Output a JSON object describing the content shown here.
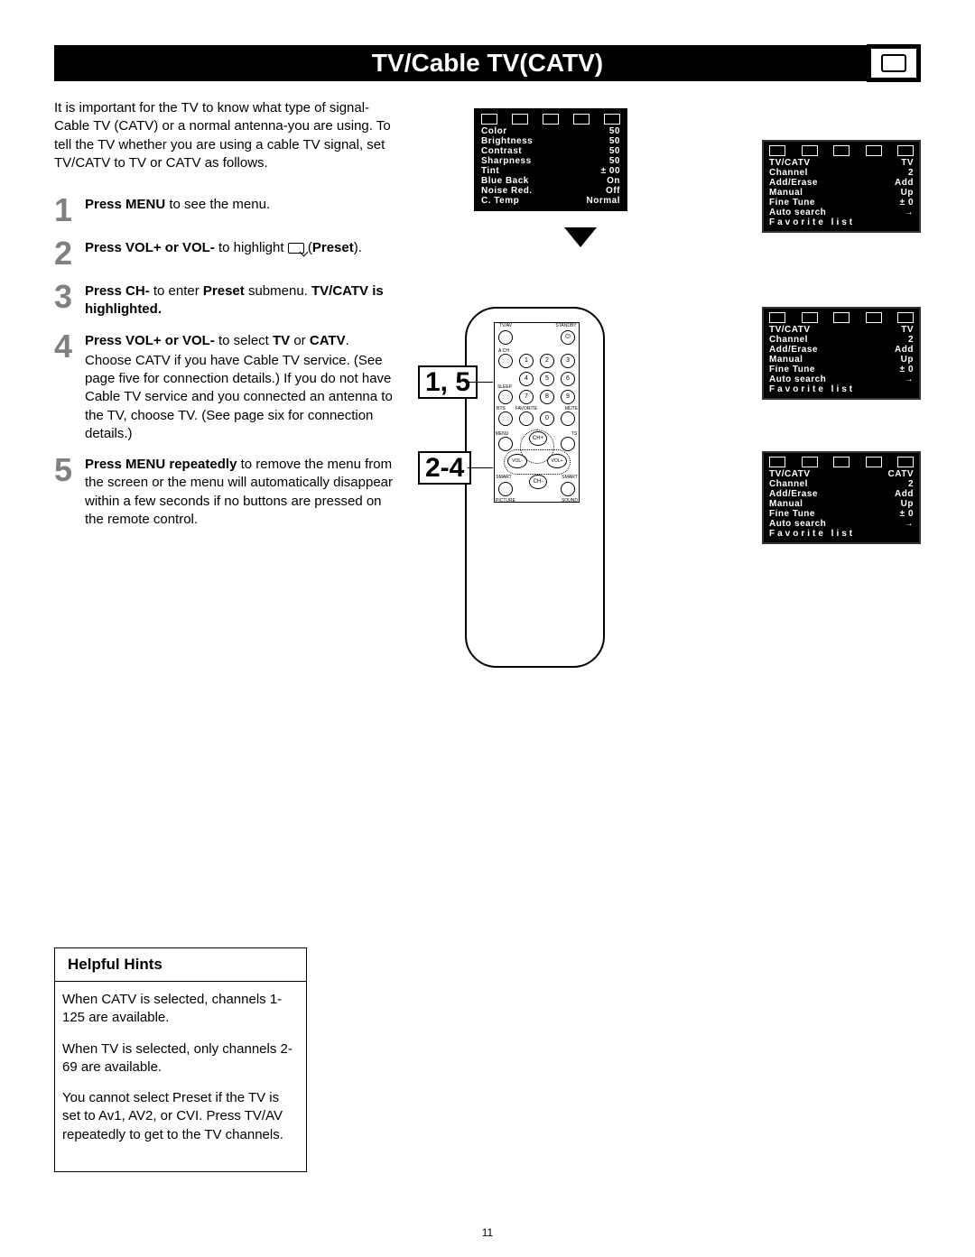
{
  "title": "TV/Cable TV(CATV)",
  "intro": "It is important for the TV to know what type of signal-Cable TV (CATV) or a normal antenna-you are using. To tell the TV whether you are using a cable TV signal, set TV/CATV to TV or CATV as follows.",
  "steps": {
    "s1": {
      "num": "1",
      "lead": "Press MENU",
      "rest": " to see the menu."
    },
    "s2": {
      "num": "2",
      "lead": "Press VOL+ or VOL-",
      "rest": " to highlight ",
      "tail": "Preset",
      "tail2": ")."
    },
    "s3": {
      "num": "3",
      "lead": "Press CH-",
      "rest": " to enter ",
      "bold2": "Preset",
      "rest2": " submenu. ",
      "bold3": "TV/CATV is highlighted."
    },
    "s4": {
      "num": "4",
      "lead": "Press VOL+ or VOL-",
      "rest": " to select ",
      "tv": "TV",
      "or": " or ",
      "catv": "CATV",
      "dot": ".",
      "body": "Choose CATV if you have Cable TV service. (See page five for connection details.) If you do not have Cable TV service and you connected an antenna to the TV, choose TV. (See page six for connection details.)"
    },
    "s5": {
      "num": "5",
      "lead": "Press MENU repeatedly",
      "rest": " to remove the menu from the screen or the menu will automatically disappear within a few seconds if no buttons are pressed on the remote control."
    }
  },
  "osd1": {
    "rows": [
      [
        "Color",
        "50"
      ],
      [
        "Brightness",
        "50"
      ],
      [
        "Contrast",
        "50"
      ],
      [
        "Sharpness",
        "50"
      ],
      [
        "Tint",
        "± 00"
      ],
      [
        "Blue Back",
        "On"
      ],
      [
        "Noise Red.",
        "Off"
      ],
      [
        "C. Temp",
        "Normal"
      ]
    ]
  },
  "osd_side": {
    "a": {
      "rows": [
        [
          "TV/CATV",
          "TV"
        ],
        [
          "Channel",
          "2"
        ],
        [
          "Add/Erase",
          "Add"
        ],
        [
          "Manual",
          "Up"
        ],
        [
          "Fine Tune",
          "± 0"
        ],
        [
          "Auto search",
          "→"
        ]
      ],
      "fav": "Favorite list"
    },
    "b": {
      "rows": [
        [
          "TV/CATV",
          "TV"
        ],
        [
          "Channel",
          "2"
        ],
        [
          "Add/Erase",
          "Add"
        ],
        [
          "Manual",
          "Up"
        ],
        [
          "Fine Tune",
          "± 0"
        ],
        [
          "Auto search",
          "→"
        ]
      ],
      "fav": "Favorite list"
    },
    "c": {
      "rows": [
        [
          "TV/CATV",
          "CATV"
        ],
        [
          "Channel",
          "2"
        ],
        [
          "Add/Erase",
          "Add"
        ],
        [
          "Manual",
          "Up"
        ],
        [
          "Fine Tune",
          "± 0"
        ],
        [
          "Auto search",
          "→"
        ]
      ],
      "fav": "Favorite list"
    }
  },
  "callouts": {
    "c15": "1, 5",
    "c24": "2-4"
  },
  "remote_labels": {
    "tvav": "TV/AV",
    "standby": "STANDBY",
    "ach": "A.CH",
    "sleep": "SLEEP",
    "bts": "BTS",
    "favorite": "FAVORITE",
    "mute": "MUTE",
    "menu": "MENU",
    "ts": "TS",
    "chp": "CH+",
    "chm": "CH-",
    "volm": "VOL-",
    "volp": "VOL+",
    "smartp": "SMART",
    "smarts": "SMART",
    "picture": "PICTURE",
    "sound": "SOUND"
  },
  "hints": {
    "title": "Helpful Hints",
    "p1": "When CATV is selected, channels 1-125 are available.",
    "p2": "When TV is selected, only channels 2-69 are available.",
    "p3": "You cannot select Preset if the TV is set to Av1, AV2, or CVI. Press TV/AV repeatedly to get to the TV channels."
  },
  "pagenum": "11"
}
